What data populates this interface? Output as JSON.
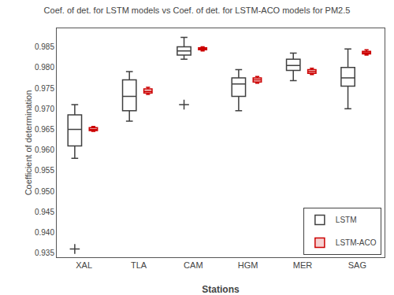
{
  "chart_data": {
    "type": "box",
    "title": "Coef. of det. for LSTM models vs Coef. of det. for LSTM-ACO models for PM2.5",
    "xlabel": "Stations",
    "ylabel": "Coefficient of determination",
    "categories": [
      "XAL",
      "TLA",
      "CAM",
      "HGM",
      "MER",
      "SAG"
    ],
    "ylim": [
      0.934,
      0.9895
    ],
    "yticks": [
      0.935,
      {
        "value": 0.94,
        "label": "0.940"
      },
      0.945,
      {
        "value": 0.95,
        "label": "0.950"
      },
      0.955,
      {
        "value": 0.96,
        "label": "0.960"
      },
      0.965,
      {
        "value": 0.97,
        "label": "0.970"
      },
      0.975,
      {
        "value": 0.98,
        "label": "0.980"
      },
      0.985
    ],
    "grid": false,
    "legend": "lower right",
    "series": [
      {
        "name": "LSTM",
        "color": "#404040",
        "marker": "+",
        "median": [
          0.965,
          0.973,
          0.984,
          0.976,
          0.9805,
          0.9775
        ],
        "q1": [
          0.961,
          0.9695,
          0.983,
          0.973,
          0.9793,
          0.9755
        ],
        "q3": [
          0.9685,
          0.977,
          0.985,
          0.9775,
          0.982,
          0.98
        ],
        "lower_whisker": [
          0.958,
          0.967,
          0.982,
          0.9695,
          0.9768,
          0.97
        ],
        "upper_whisker": [
          0.971,
          0.979,
          0.9873,
          0.9795,
          0.9835,
          0.9845
        ],
        "outliers": [
          [
            0.936
          ],
          [],
          [
            0.971
          ],
          [],
          [],
          []
        ]
      },
      {
        "name": "LSTM-ACO",
        "color": "#cc0000",
        "marker": "+",
        "median": [
          0.965,
          0.9742,
          0.9845,
          0.977,
          0.979,
          0.9836
        ],
        "q1": [
          0.9647,
          0.9738,
          0.9843,
          0.9765,
          0.9786,
          0.9833
        ],
        "q3": [
          0.9654,
          0.9748,
          0.9848,
          0.9775,
          0.9795,
          0.9839
        ],
        "lower_whisker": [
          0.9645,
          0.9735,
          0.984,
          0.9762,
          0.9783,
          0.983
        ],
        "upper_whisker": [
          0.9657,
          0.9752,
          0.985,
          0.9778,
          0.9798,
          0.9843
        ],
        "outliers": [
          [],
          [],
          [],
          [],
          [],
          []
        ]
      }
    ]
  }
}
